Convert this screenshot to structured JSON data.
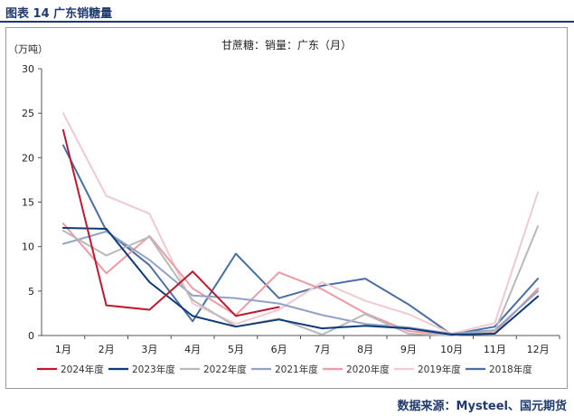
{
  "figure_title": "图表 14 广东销糖量",
  "source": "数据来源：Mysteel、国元期货",
  "chart_data": {
    "type": "line",
    "title": "甘蔗糖：销量：广东（月）",
    "ylabel": "（万吨）",
    "xlabel": "",
    "ylim": [
      0,
      30
    ],
    "yticks": [
      0,
      5,
      10,
      15,
      20,
      25,
      30
    ],
    "categories": [
      "1月",
      "2月",
      "3月",
      "4月",
      "5月",
      "6月",
      "7月",
      "8月",
      "9月",
      "10月",
      "11月",
      "12月"
    ],
    "legend_position": "bottom",
    "grid": false,
    "series": [
      {
        "name": "2024年度",
        "color": "#c0192e",
        "values": [
          23.1,
          3.4,
          2.9,
          7.2,
          2.2,
          3.2,
          null,
          null,
          null,
          null,
          null,
          null
        ]
      },
      {
        "name": "2023年度",
        "color": "#0f3a78",
        "values": [
          12.1,
          12.0,
          6.0,
          2.2,
          1.0,
          1.8,
          0.8,
          1.1,
          0.8,
          0.1,
          0.2,
          4.4
        ]
      },
      {
        "name": "2022年度",
        "color": "#b9b9b9",
        "values": [
          11.8,
          9.0,
          11.1,
          4.0,
          1.0,
          1.9,
          0.1,
          2.4,
          0.2,
          0.0,
          0.5,
          12.3
        ]
      },
      {
        "name": "2021年度",
        "color": "#8fa3c6",
        "values": [
          10.3,
          11.7,
          8.5,
          4.5,
          4.2,
          3.6,
          2.3,
          1.3,
          0.9,
          0.2,
          0.6,
          5.0
        ]
      },
      {
        "name": "2020年度",
        "color": "#ee9aa5",
        "values": [
          12.6,
          7.0,
          11.2,
          5.3,
          2.3,
          7.1,
          5.2,
          2.5,
          0.5,
          0.1,
          0.3,
          5.3
        ]
      },
      {
        "name": "2019年度",
        "color": "#f1c9d0",
        "values": [
          25.0,
          15.7,
          13.7,
          3.6,
          1.3,
          2.9,
          6.0,
          3.9,
          2.4,
          0.2,
          1.4,
          16.1
        ]
      },
      {
        "name": "2018年度",
        "color": "#4a6fa8",
        "values": [
          21.4,
          11.8,
          7.9,
          1.6,
          9.2,
          4.2,
          5.6,
          6.4,
          3.5,
          0.1,
          1.0,
          6.4
        ]
      }
    ]
  }
}
